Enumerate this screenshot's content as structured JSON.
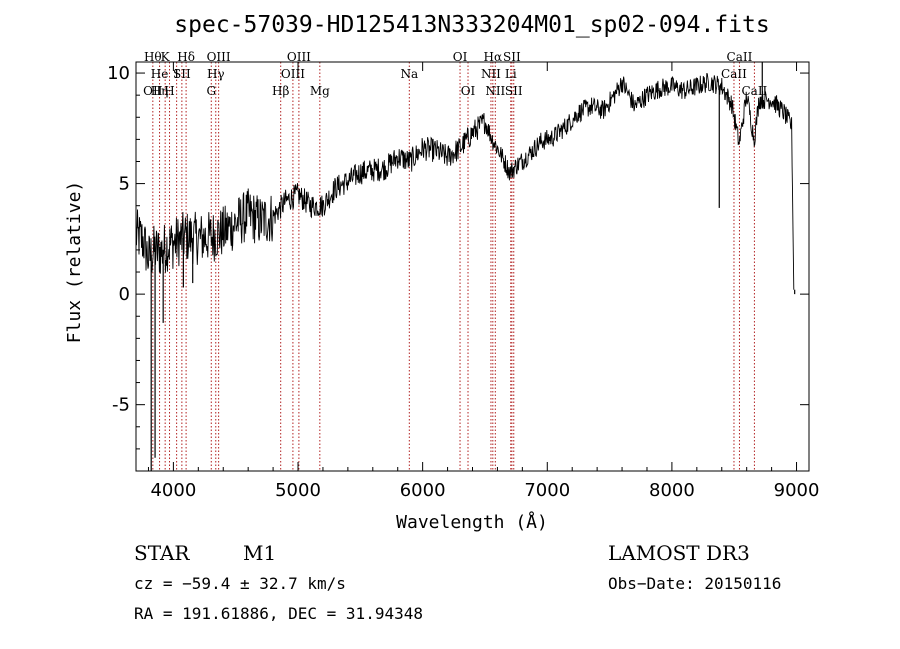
{
  "chart_data": {
    "type": "line",
    "title": "spec-57039-HD125413N333204M01_sp02-094.fits",
    "xlabel": "Wavelength (Å)",
    "ylabel": "Flux (relative)",
    "xlim": [
      3700,
      9100
    ],
    "ylim": [
      -8,
      10.5
    ],
    "xticks": [
      4000,
      5000,
      6000,
      7000,
      8000,
      9000
    ],
    "yticks": [
      -5,
      0,
      5,
      10
    ],
    "series": [
      {
        "name": "flux",
        "anchors": [
          [
            3700,
            2.7
          ],
          [
            3760,
            2.4
          ],
          [
            3800,
            1.6
          ],
          [
            3850,
            2.0
          ],
          [
            3900,
            1.9
          ],
          [
            3950,
            2.2
          ],
          [
            4000,
            2.3
          ],
          [
            4100,
            2.6
          ],
          [
            4200,
            2.5
          ],
          [
            4300,
            2.6
          ],
          [
            4400,
            2.8
          ],
          [
            4500,
            3.2
          ],
          [
            4600,
            3.6
          ],
          [
            4700,
            3.3
          ],
          [
            4800,
            3.5
          ],
          [
            4900,
            4.2
          ],
          [
            5000,
            4.5
          ],
          [
            5100,
            4.0
          ],
          [
            5200,
            4.0
          ],
          [
            5300,
            4.8
          ],
          [
            5400,
            5.1
          ],
          [
            5500,
            5.5
          ],
          [
            5600,
            5.6
          ],
          [
            5700,
            5.7
          ],
          [
            5800,
            6.2
          ],
          [
            5900,
            6.0
          ],
          [
            6000,
            6.6
          ],
          [
            6100,
            6.5
          ],
          [
            6200,
            6.2
          ],
          [
            6300,
            6.6
          ],
          [
            6400,
            7.3
          ],
          [
            6500,
            7.8
          ],
          [
            6560,
            7.0
          ],
          [
            6620,
            6.4
          ],
          [
            6700,
            5.5
          ],
          [
            6750,
            5.8
          ],
          [
            6850,
            6.3
          ],
          [
            6950,
            6.9
          ],
          [
            7050,
            7.1
          ],
          [
            7150,
            7.6
          ],
          [
            7250,
            8.2
          ],
          [
            7350,
            8.5
          ],
          [
            7450,
            8.3
          ],
          [
            7550,
            9.1
          ],
          [
            7600,
            9.6
          ],
          [
            7700,
            8.5
          ],
          [
            7800,
            9.0
          ],
          [
            7900,
            9.3
          ],
          [
            8000,
            9.4
          ],
          [
            8100,
            9.2
          ],
          [
            8200,
            9.4
          ],
          [
            8300,
            9.6
          ],
          [
            8400,
            9.4
          ],
          [
            8480,
            8.6
          ],
          [
            8540,
            6.8
          ],
          [
            8600,
            9.0
          ],
          [
            8660,
            7.0
          ],
          [
            8700,
            8.8
          ],
          [
            8800,
            8.8
          ],
          [
            8900,
            8.2
          ],
          [
            8960,
            7.6
          ],
          [
            8980,
            0.2
          ]
        ],
        "spikes": [
          [
            3822,
            -8.0
          ],
          [
            3853,
            -7.4
          ],
          [
            3918,
            -1.3
          ],
          [
            4080,
            0.3
          ],
          [
            4155,
            0.5
          ],
          [
            8380,
            3.9
          ],
          [
            8725,
            10.5
          ],
          [
            8985,
            0.0
          ]
        ]
      }
    ],
    "lines": [
      {
        "wl": 3835,
        "labels": [
          "Hθ",
          "",
          "OII"
        ]
      },
      {
        "wl": 3889,
        "labels": [
          "",
          "He",
          "Hη"
        ]
      },
      {
        "wl": 3934,
        "labels": [
          "K",
          "",
          ""
        ]
      },
      {
        "wl": 3969,
        "labels": [
          "",
          "",
          "H"
        ]
      },
      {
        "wl": 4026,
        "labels": [
          "",
          "I",
          ""
        ]
      },
      {
        "wl": 4068,
        "labels": [
          "",
          "SII",
          ""
        ]
      },
      {
        "wl": 4102,
        "labels": [
          "Hδ",
          "",
          ""
        ]
      },
      {
        "wl": 4304,
        "labels": [
          "",
          "",
          "G"
        ]
      },
      {
        "wl": 4340,
        "labels": [
          "",
          "Hγ",
          ""
        ]
      },
      {
        "wl": 4363,
        "labels": [
          "OIII",
          "",
          ""
        ]
      },
      {
        "wl": 4861,
        "labels": [
          "",
          "",
          "Hβ"
        ]
      },
      {
        "wl": 4959,
        "labels": [
          "",
          "OIII",
          ""
        ]
      },
      {
        "wl": 5007,
        "labels": [
          "OIII",
          "",
          ""
        ]
      },
      {
        "wl": 5175,
        "labels": [
          "",
          "",
          "Mg"
        ]
      },
      {
        "wl": 5893,
        "labels": [
          "",
          "Na",
          ""
        ]
      },
      {
        "wl": 6300,
        "labels": [
          "OI",
          "",
          ""
        ]
      },
      {
        "wl": 6364,
        "labels": [
          "",
          "",
          "OI"
        ]
      },
      {
        "wl": 6548,
        "labels": [
          "",
          "NII",
          ""
        ]
      },
      {
        "wl": 6563,
        "labels": [
          "Hα",
          "",
          ""
        ]
      },
      {
        "wl": 6583,
        "labels": [
          "",
          "",
          "NII"
        ]
      },
      {
        "wl": 6707,
        "labels": [
          "",
          "Li",
          ""
        ]
      },
      {
        "wl": 6716,
        "labels": [
          "SII",
          "",
          ""
        ]
      },
      {
        "wl": 6731,
        "labels": [
          "",
          "",
          "SII"
        ]
      },
      {
        "wl": 8498,
        "labels": [
          "",
          "CaII",
          ""
        ]
      },
      {
        "wl": 8542,
        "labels": [
          "CaII",
          "",
          ""
        ]
      },
      {
        "wl": 8662,
        "labels": [
          "",
          "",
          "CaII"
        ]
      }
    ]
  },
  "info": {
    "class": "STAR",
    "subclass": "M1",
    "survey": "LAMOST DR3",
    "cz": "cz = −59.4 ± 32.7 km/s",
    "obs_date": "Obs−Date: 20150116",
    "coords": "RA = 191.61886, DEC =  31.94348"
  }
}
